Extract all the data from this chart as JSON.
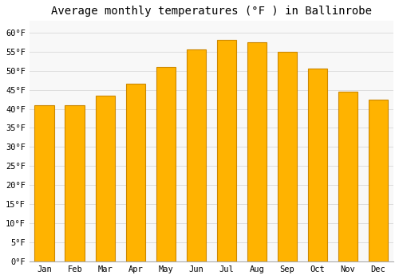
{
  "title": "Average monthly temperatures (°F ) in Ballinrobe",
  "months": [
    "Jan",
    "Feb",
    "Mar",
    "Apr",
    "May",
    "Jun",
    "Jul",
    "Aug",
    "Sep",
    "Oct",
    "Nov",
    "Dec"
  ],
  "values": [
    41.0,
    41.0,
    43.5,
    46.5,
    51.0,
    55.5,
    58.0,
    57.5,
    55.0,
    50.5,
    44.5,
    42.5
  ],
  "bar_color": "#FFAA00",
  "bar_edge_color": "#CC8800",
  "background_color": "#FFFFFF",
  "plot_bg_color": "#F8F8F8",
  "grid_color": "#DDDDDD",
  "ylim": [
    0,
    63
  ],
  "yticks": [
    0,
    5,
    10,
    15,
    20,
    25,
    30,
    35,
    40,
    45,
    50,
    55,
    60
  ],
  "title_fontsize": 10,
  "tick_fontsize": 7.5,
  "title_font": "monospace"
}
